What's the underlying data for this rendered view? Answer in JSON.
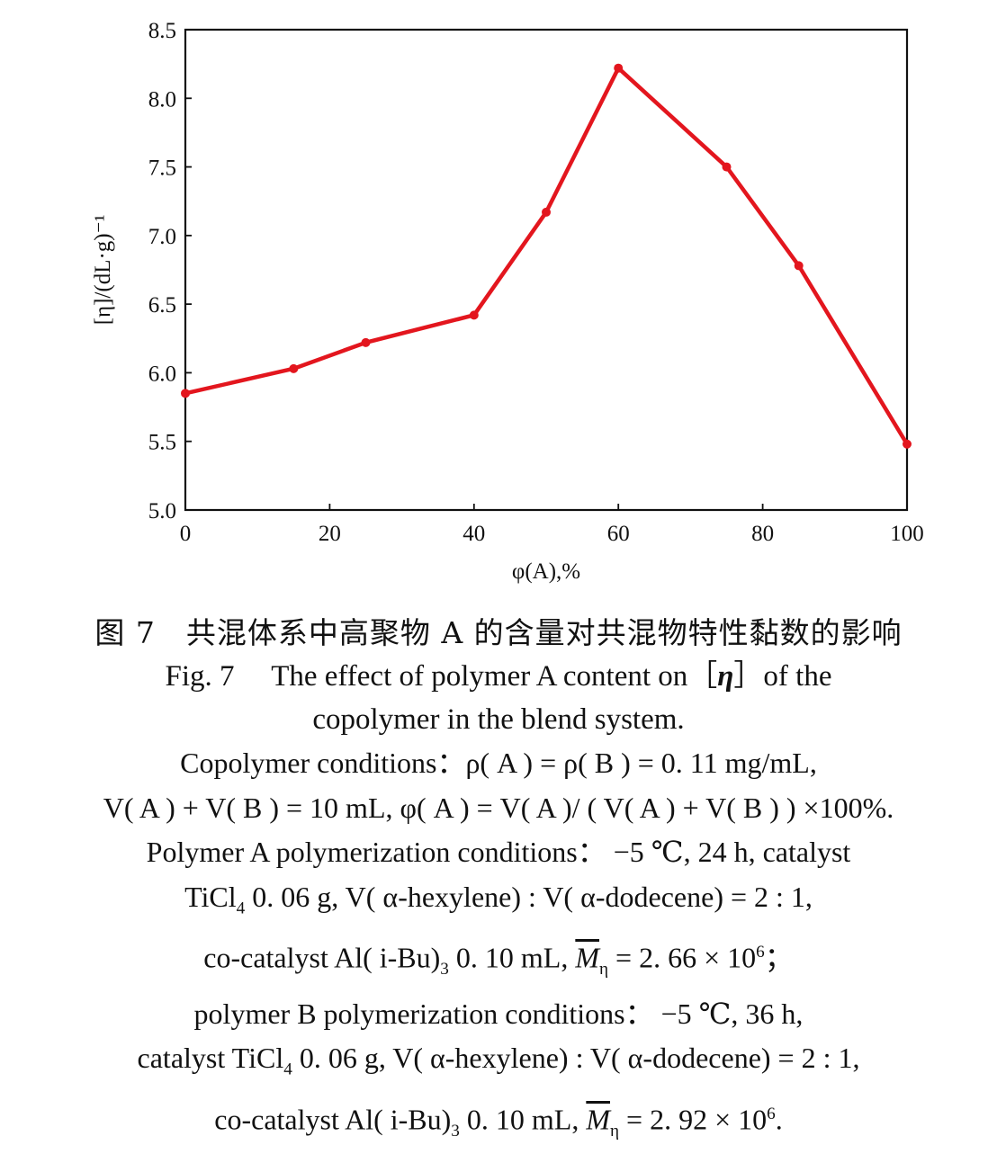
{
  "chart_data": {
    "type": "line",
    "title": "",
    "xlabel": "φ(A),%",
    "ylabel": "[η]/(dL·g)⁻¹",
    "xlim": [
      0,
      100
    ],
    "ylim": [
      5.0,
      8.5
    ],
    "x_ticks": [
      "0",
      "20",
      "40",
      "60",
      "80",
      "100"
    ],
    "y_ticks": [
      "5.0",
      "5.5",
      "6.0",
      "6.5",
      "7.0",
      "7.5",
      "8.0",
      "8.5"
    ],
    "grid": false,
    "series": [
      {
        "color": "#e3161e",
        "x": [
          0,
          15,
          25,
          40,
          50,
          60,
          75,
          85,
          100
        ],
        "y": [
          5.85,
          6.03,
          6.22,
          6.42,
          7.17,
          8.22,
          7.5,
          6.78,
          5.48
        ]
      }
    ]
  },
  "caption": {
    "zh": "图 7　共混体系中高聚物 A 的含量对共混物特性黏数的影响",
    "en_line1_a": "Fig. 7　 The effect of polymer A content on［",
    "en_line1_eta": "η",
    "en_line1_b": "］of the",
    "en_line2": "copolymer in the blend system."
  },
  "conditions": {
    "l1": "Copolymer conditions：ρ( A ) = ρ( B ) = 0. 11 mg/mL,",
    "l2": "V( A ) + V( B ) = 10 mL, φ( A ) = V( A )/ ( V( A ) + V( B ) ) ×100%.",
    "l3": "Polymer A polymerization conditions： −5 ℃, 24 h, catalyst",
    "l4_a": "TiCl",
    "l4_sub": "4",
    "l4_b": " 0. 06 g, V( α-hexylene) : V( α-dodecene) = 2 : 1,",
    "l5_a": "co-catalyst Al( i-Bu)",
    "l5_sub": "3",
    "l5_b": " 0. 10 mL, ",
    "l5_m": "M",
    "l5_eta": "η",
    "l5_c": " = 2. 66 × 10",
    "l5_sup": "6",
    "l5_d": "；",
    "l6": "polymer B polymerization conditions： −5 ℃, 36 h,",
    "l7_a": "catalyst TiCl",
    "l7_sub": "4",
    "l7_b": " 0. 06 g, V( α-hexylene) : V( α-dodecene) = 2 : 1,",
    "l8_a": "co-catalyst Al( i-Bu)",
    "l8_sub": "3",
    "l8_b": " 0. 10 mL, ",
    "l8_m": "M",
    "l8_eta": "η",
    "l8_c": " = 2. 92 × 10",
    "l8_sup": "6",
    "l8_d": "."
  }
}
